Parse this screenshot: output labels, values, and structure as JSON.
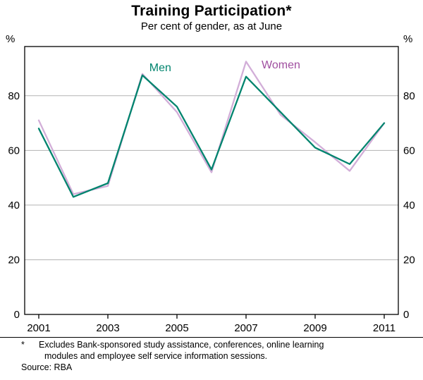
{
  "header": {
    "title": "Training Participation*",
    "subtitle": "Per cent of gender, as at June"
  },
  "footer": {
    "footnote_marker": "*",
    "footnote_line1": "Excludes Bank-sponsored study assistance, conferences, online learning",
    "footnote_line2": "modules and employee self service information sessions.",
    "source": "Source: RBA"
  },
  "chart_data": {
    "type": "line",
    "title": "Training Participation*",
    "subtitle": "Per cent of gender, as at June",
    "ylabel": "%",
    "ylabel_right": "%",
    "xlabel": "",
    "x": [
      2001,
      2002,
      2003,
      2004,
      2005,
      2006,
      2007,
      2008,
      2009,
      2010,
      2011
    ],
    "series": [
      {
        "name": "Men",
        "color": "#00846e",
        "label_color": "#00846e",
        "values": [
          68,
          43,
          48,
          87.5,
          76,
          53,
          87,
          74,
          61,
          55,
          70
        ],
        "label_pos": {
          "x": 2004.2,
          "y": 89
        }
      },
      {
        "name": "Women",
        "color": "#d2aed8",
        "label_color": "#a04fa0",
        "values": [
          71,
          44,
          47,
          88,
          74,
          52,
          92.5,
          73,
          63,
          52.5,
          70
        ],
        "label_pos": {
          "x": 2007.45,
          "y": 90
        }
      }
    ],
    "ylim": [
      0,
      98
    ],
    "yticks": [
      0,
      20,
      40,
      60,
      80
    ],
    "xticks": [
      2001,
      2003,
      2005,
      2007,
      2009,
      2011
    ],
    "grid": true,
    "gridcolor": "#b3b3b3",
    "legend_position": "inline-labels"
  }
}
